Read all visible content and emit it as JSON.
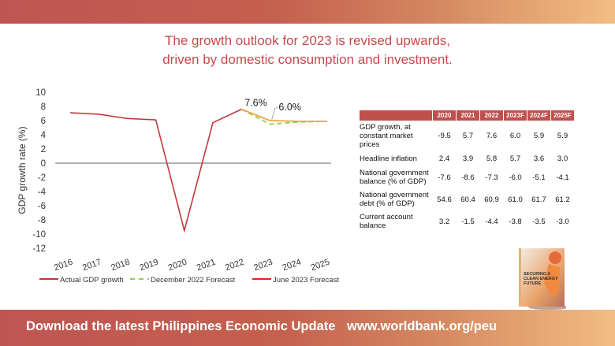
{
  "header": {
    "headline_line1": "The growth outlook for 2023 is revised upwards,",
    "headline_line2": "driven by domestic consumption and investment."
  },
  "footer": {
    "text": "Download the latest Philippines Economic Update",
    "url": "www.worldbank.org/peu"
  },
  "book": {
    "title_lines": [
      "SECURING A",
      "CLEAN ENERGY",
      "FUTURE"
    ]
  },
  "colors": {
    "actual": "#c0393b",
    "december": "#8fce4a",
    "june": "#f4a340",
    "table_header": "#c0504d",
    "headline": "#c9484c"
  },
  "chart_data": {
    "type": "line",
    "ylabel": "GDP growth rate (%)",
    "ylim": [
      -12,
      10
    ],
    "yticks": [
      10,
      8,
      6,
      4,
      2,
      0,
      -2,
      -4,
      -6,
      -8,
      -10,
      -12
    ],
    "categories": [
      "2016",
      "2017",
      "2018",
      "2019",
      "2020",
      "2021",
      "2022",
      "2023",
      "2024",
      "2025"
    ],
    "legend_position": "bottom",
    "series": [
      {
        "name": "Actual GDP growth",
        "x": [
          "2016",
          "2017",
          "2018",
          "2019",
          "2020",
          "2021",
          "2022"
        ],
        "values": [
          7.1,
          6.9,
          6.3,
          6.1,
          -9.5,
          5.7,
          7.6
        ],
        "style": "solid"
      },
      {
        "name": "December 2022 Forecast",
        "x": [
          "2022",
          "2023",
          "2024",
          "2025"
        ],
        "values": [
          7.6,
          5.5,
          5.8,
          5.9
        ],
        "style": "dashed"
      },
      {
        "name": "June 2023 Forecast",
        "x": [
          "2022",
          "2023",
          "2024",
          "2025"
        ],
        "values": [
          7.6,
          6.0,
          5.9,
          5.9
        ],
        "style": "solid"
      }
    ],
    "annotations": [
      {
        "text": "7.6%",
        "x": "2022",
        "y": 7.6
      },
      {
        "text": "6.0%",
        "x": "2023",
        "y": 6.0
      }
    ]
  },
  "table": {
    "columns": [
      "2020",
      "2021",
      "2022",
      "2023F",
      "2024F",
      "2025F"
    ],
    "rows": [
      {
        "label": "GDP growth, at constant market prices",
        "values": [
          "-9.5",
          "5.7",
          "7.6",
          "6.0",
          "5.9",
          "5.9"
        ]
      },
      {
        "label": "Headline inflation",
        "values": [
          "2.4",
          "3.9",
          "5.8",
          "5.7",
          "3.6",
          "3.0"
        ]
      },
      {
        "label": "National government balance (% of GDP)",
        "values": [
          "-7.6",
          "-8.6",
          "-7.3",
          "-6.0",
          "-5.1",
          "-4.1"
        ]
      },
      {
        "label": "National government debt (% of GDP)",
        "values": [
          "54.6",
          "60.4",
          "60.9",
          "61.0",
          "61.7",
          "61.2"
        ]
      },
      {
        "label": "Current account balance",
        "values": [
          "3.2",
          "-1.5",
          "-4.4",
          "-3.8",
          "-3.5",
          "-3.0"
        ]
      }
    ]
  }
}
